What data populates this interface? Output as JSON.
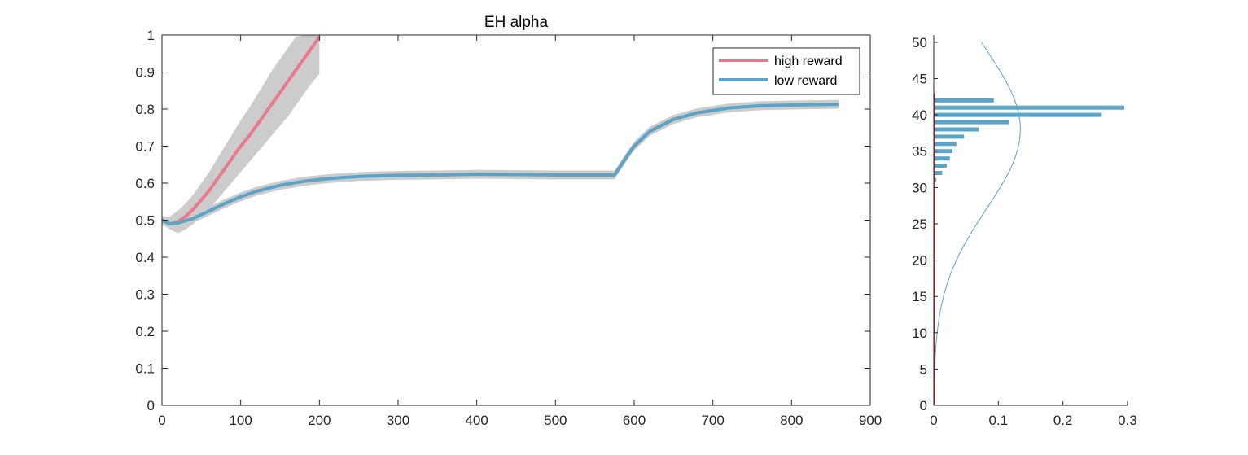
{
  "chart_data": [
    {
      "type": "line",
      "title": "EH  alpha",
      "xlabel": "",
      "ylabel": "",
      "xlim": [
        0,
        900
      ],
      "ylim": [
        0,
        1
      ],
      "xticks": [
        0,
        100,
        200,
        300,
        400,
        500,
        600,
        700,
        800,
        900
      ],
      "xtick_labels": [
        "0",
        "100",
        "200",
        "300",
        "400",
        "500",
        "600",
        "700",
        "800",
        "900"
      ],
      "yticks": [
        0,
        0.1,
        0.2,
        0.3,
        0.4,
        0.5,
        0.6,
        0.7,
        0.8,
        0.9,
        1
      ],
      "ytick_labels": [
        "0",
        "0.1",
        "0.2",
        "0.3",
        "0.4",
        "0.5",
        "0.6",
        "0.7",
        "0.8",
        "0.9",
        "1"
      ],
      "grid": false,
      "legend_position": "top-right",
      "series": [
        {
          "name": "high reward",
          "color": "#e87a8c",
          "band_color": "#cccccc",
          "x": [
            0,
            10,
            20,
            30,
            40,
            50,
            60,
            70,
            80,
            90,
            100,
            110,
            120,
            130,
            140,
            150,
            160,
            170,
            180,
            190,
            200
          ],
          "values": [
            0.5,
            0.49,
            0.495,
            0.51,
            0.53,
            0.555,
            0.58,
            0.61,
            0.64,
            0.67,
            0.7,
            0.725,
            0.755,
            0.785,
            0.815,
            0.845,
            0.875,
            0.905,
            0.935,
            0.965,
            0.995
          ],
          "band_lower": [
            0.49,
            0.475,
            0.465,
            0.475,
            0.49,
            0.51,
            0.53,
            0.555,
            0.58,
            0.605,
            0.63,
            0.655,
            0.68,
            0.705,
            0.73,
            0.755,
            0.78,
            0.81,
            0.84,
            0.87,
            0.895
          ],
          "band_upper": [
            0.505,
            0.51,
            0.525,
            0.545,
            0.57,
            0.6,
            0.63,
            0.665,
            0.7,
            0.735,
            0.77,
            0.8,
            0.835,
            0.87,
            0.905,
            0.935,
            0.965,
            0.995,
            1.0,
            1.0,
            1.0
          ]
        },
        {
          "name": "low reward",
          "color": "#5ba3c7",
          "band_color": "#cccccc",
          "x": [
            0,
            10,
            20,
            40,
            60,
            80,
            100,
            120,
            150,
            180,
            210,
            250,
            300,
            350,
            400,
            450,
            500,
            550,
            575,
            580,
            590,
            600,
            620,
            650,
            680,
            720,
            760,
            800,
            830,
            860
          ],
          "values": [
            0.5,
            0.49,
            0.492,
            0.505,
            0.525,
            0.545,
            0.563,
            0.578,
            0.594,
            0.605,
            0.612,
            0.618,
            0.621,
            0.622,
            0.624,
            0.623,
            0.622,
            0.622,
            0.622,
            0.638,
            0.67,
            0.7,
            0.74,
            0.772,
            0.79,
            0.803,
            0.809,
            0.811,
            0.812,
            0.813
          ],
          "band_halfwidth": [
            0.012,
            0.012,
            0.012,
            0.012,
            0.012,
            0.012,
            0.012,
            0.012,
            0.012,
            0.012,
            0.012,
            0.012,
            0.012,
            0.012,
            0.012,
            0.012,
            0.012,
            0.012,
            0.012,
            0.012,
            0.012,
            0.012,
            0.012,
            0.012,
            0.012,
            0.012,
            0.012,
            0.012,
            0.012,
            0.012
          ]
        }
      ]
    },
    {
      "type": "bar",
      "orientation": "horizontal",
      "title": "",
      "xlim": [
        0,
        0.3
      ],
      "ylim": [
        0,
        51
      ],
      "xticks": [
        0,
        0.1,
        0.2,
        0.3
      ],
      "xtick_labels": [
        "0",
        "0.1",
        "0.2",
        "0.3"
      ],
      "yticks": [
        0,
        5,
        10,
        15,
        20,
        25,
        30,
        35,
        40,
        45,
        50
      ],
      "ytick_labels": [
        "0",
        "5",
        "10",
        "15",
        "20",
        "25",
        "30",
        "35",
        "40",
        "45",
        "50"
      ],
      "bar_color": "#5ba3c7",
      "bars": [
        {
          "y": 31,
          "value": 0.004
        },
        {
          "y": 32,
          "value": 0.013
        },
        {
          "y": 33,
          "value": 0.02
        },
        {
          "y": 34,
          "value": 0.025
        },
        {
          "y": 35,
          "value": 0.029
        },
        {
          "y": 36,
          "value": 0.035
        },
        {
          "y": 37,
          "value": 0.047
        },
        {
          "y": 38,
          "value": 0.07
        },
        {
          "y": 39,
          "value": 0.117
        },
        {
          "y": 40,
          "value": 0.26
        },
        {
          "y": 41,
          "value": 0.295
        },
        {
          "y": 42,
          "value": 0.093
        }
      ],
      "curve_color": "#5ba3c7",
      "curve": {
        "type": "normal",
        "mean": 38,
        "sd": 11,
        "y_range": [
          1,
          50
        ],
        "peak_value": 0.134
      },
      "marker_line": {
        "color": "#e02020",
        "x": 0,
        "y_range": [
          0,
          43
        ]
      }
    }
  ]
}
